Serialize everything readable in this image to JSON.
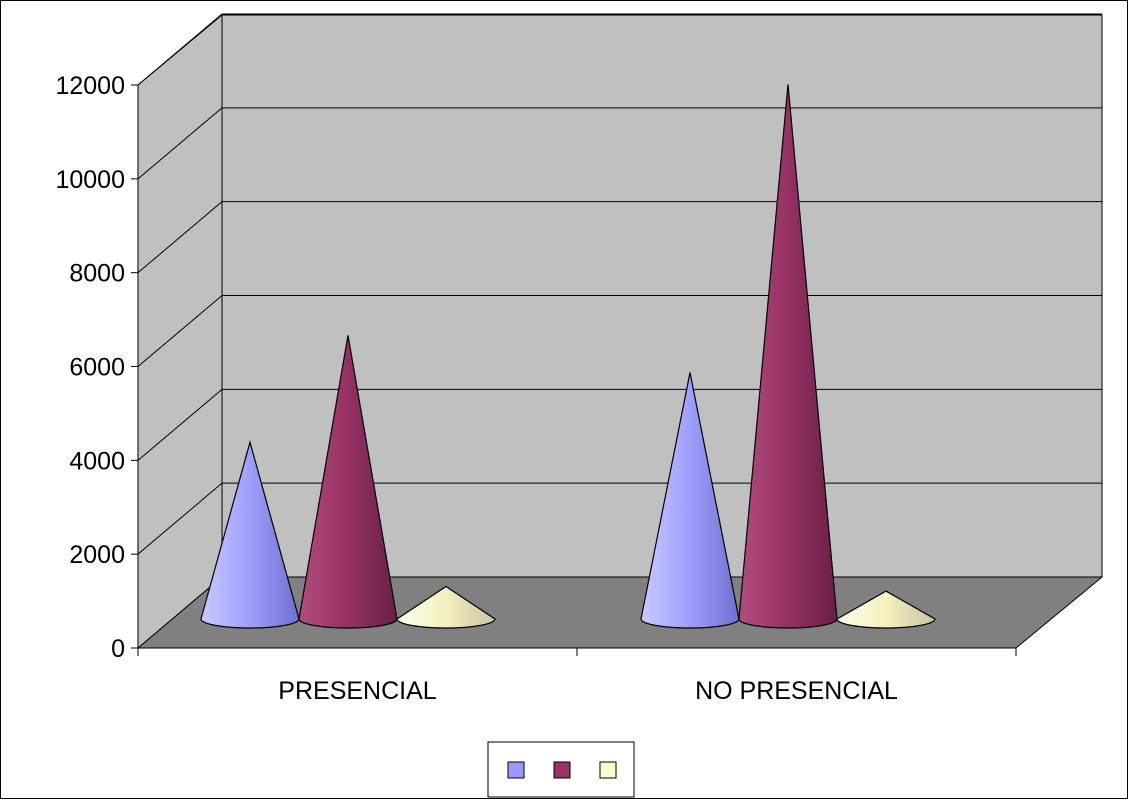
{
  "chart_data": {
    "type": "bar",
    "subtype": "3d-cone",
    "title": "",
    "xlabel": "",
    "ylabel": "",
    "categories": [
      "PRESENCIAL",
      "NO PRESENCIAL"
    ],
    "series": [
      {
        "values": [
          3800,
          5300
        ],
        "color": "#9999ff"
      },
      {
        "values": [
          6100,
          11500
        ],
        "color": "#993366"
      },
      {
        "values": [
          700,
          600
        ],
        "color": "#ffffcc"
      }
    ],
    "ylim": [
      0,
      12000
    ],
    "yticks": [
      "0",
      "2000",
      "4000",
      "6000",
      "8000",
      "10000",
      "12000"
    ],
    "grid": true,
    "legend_position": "bottom"
  },
  "colors": {
    "back_wall": "#c0c0c0",
    "side_wall": "#c0c0c0",
    "floor": "#808080",
    "border": "#000000"
  }
}
